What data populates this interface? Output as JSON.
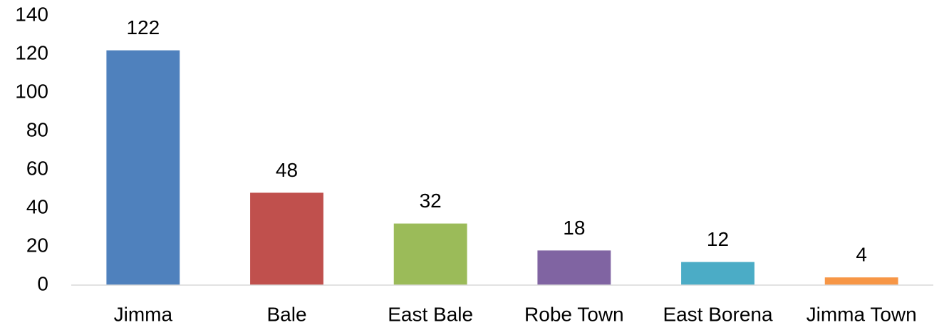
{
  "chart_data": {
    "type": "bar",
    "categories": [
      "Jimma",
      "Bale",
      "East Bale",
      "Robe Town",
      "East Borena",
      "Jimma Town"
    ],
    "values": [
      122,
      48,
      32,
      18,
      12,
      4
    ],
    "colors": [
      "#4f81bd",
      "#c0504d",
      "#9bbb59",
      "#8064a2",
      "#4bacc6",
      "#f79646"
    ],
    "ylim": [
      0,
      140
    ],
    "yticks": [
      0,
      20,
      40,
      60,
      80,
      100,
      120,
      140
    ],
    "grid": false
  }
}
